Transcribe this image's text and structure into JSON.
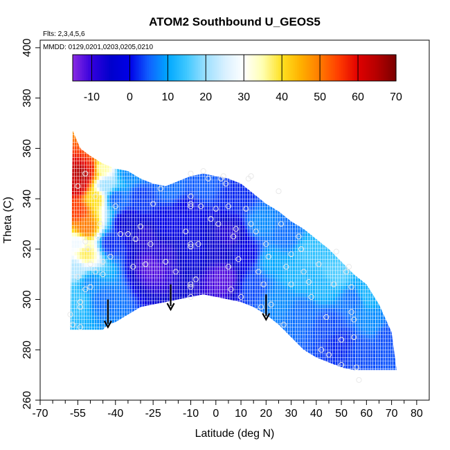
{
  "chart_data": {
    "type": "heatmap",
    "title": "ATOM2 Southbound U_GEOS5",
    "subtitle_lines": [
      "Flts: 2,3,4,5,6",
      "MMDD: 0129,0201,0203,0205,0210"
    ],
    "xlabel": "Latitude (deg N)",
    "ylabel": "Theta (C)",
    "xlim": [
      -70,
      85
    ],
    "ylim": [
      260,
      403
    ],
    "x_ticks": [
      -70,
      -55,
      -40,
      -25,
      -10,
      0,
      10,
      20,
      30,
      40,
      50,
      60,
      70,
      80
    ],
    "x_tick_labels": [
      "-70",
      "-55",
      "-40",
      "-25",
      "-10",
      "0",
      "10",
      "20",
      "30",
      "40",
      "50",
      "60",
      "70",
      "80"
    ],
    "x_minor_ticks": [
      -65,
      -60,
      -50,
      -45,
      -35,
      -30,
      -20,
      -15,
      -5,
      5,
      15,
      25,
      35,
      45,
      55,
      65,
      75
    ],
    "y_ticks": [
      260,
      280,
      300,
      320,
      340,
      360,
      380,
      400
    ],
    "y_tick_labels": [
      "260",
      "280",
      "300",
      "320",
      "340",
      "360",
      "380",
      "400"
    ],
    "colorbar": {
      "min": -15,
      "max": 70,
      "ticks": [
        -10,
        0,
        10,
        20,
        30,
        40,
        50,
        60,
        70
      ],
      "tick_labels": [
        "-10",
        "0",
        "10",
        "20",
        "30",
        "40",
        "50",
        "60",
        "70"
      ],
      "color_stops": [
        {
          "v": -15,
          "c": "#8a2be2"
        },
        {
          "v": -10,
          "c": "#3300dd"
        },
        {
          "v": -5,
          "c": "#0000cc"
        },
        {
          "v": 0,
          "c": "#0000e6"
        },
        {
          "v": 5,
          "c": "#1060ff"
        },
        {
          "v": 10,
          "c": "#00a8ff"
        },
        {
          "v": 15,
          "c": "#40c8ff"
        },
        {
          "v": 20,
          "c": "#9de0ff"
        },
        {
          "v": 25,
          "c": "#d8f0ff"
        },
        {
          "v": 30,
          "c": "#ffffff"
        },
        {
          "v": 35,
          "c": "#ffffb0"
        },
        {
          "v": 40,
          "c": "#ffe020"
        },
        {
          "v": 45,
          "c": "#ffb000"
        },
        {
          "v": 50,
          "c": "#ff7a00"
        },
        {
          "v": 55,
          "c": "#ff3c00"
        },
        {
          "v": 60,
          "c": "#e00000"
        },
        {
          "v": 65,
          "c": "#b40000"
        },
        {
          "v": 70,
          "c": "#7a0000"
        }
      ]
    },
    "field_domain": {
      "top_boundary": [
        [
          -57,
          367
        ],
        [
          -54,
          360
        ],
        [
          -50,
          357
        ],
        [
          -45,
          354
        ],
        [
          -40,
          352
        ],
        [
          -35,
          351
        ],
        [
          -30,
          348
        ],
        [
          -25,
          346
        ],
        [
          -20,
          345
        ],
        [
          -15,
          347
        ],
        [
          -10,
          349
        ],
        [
          -5,
          350
        ],
        [
          0,
          349
        ],
        [
          5,
          348
        ],
        [
          10,
          346
        ],
        [
          15,
          342
        ],
        [
          20,
          338
        ],
        [
          25,
          335
        ],
        [
          30,
          331
        ],
        [
          35,
          328
        ],
        [
          40,
          324
        ],
        [
          45,
          320
        ],
        [
          50,
          315
        ],
        [
          55,
          310
        ],
        [
          60,
          306
        ],
        [
          65,
          298
        ],
        [
          70,
          287
        ],
        [
          72,
          272
        ]
      ],
      "bottom_boundary": [
        [
          -58,
          288
        ],
        [
          -50,
          288
        ],
        [
          -45,
          288
        ],
        [
          -43,
          290
        ],
        [
          -40,
          291
        ],
        [
          -35,
          294
        ],
        [
          -30,
          297
        ],
        [
          -25,
          298
        ],
        [
          -20,
          299
        ],
        [
          -15,
          300
        ],
        [
          -10,
          301
        ],
        [
          -5,
          302
        ],
        [
          0,
          301
        ],
        [
          5,
          300
        ],
        [
          10,
          299
        ],
        [
          15,
          297
        ],
        [
          20,
          294
        ],
        [
          25,
          290
        ],
        [
          30,
          285
        ],
        [
          35,
          280
        ],
        [
          40,
          277
        ],
        [
          45,
          275
        ],
        [
          50,
          273
        ],
        [
          55,
          272
        ],
        [
          60,
          272
        ],
        [
          65,
          272
        ],
        [
          70,
          272
        ],
        [
          72,
          272
        ]
      ]
    },
    "field_samples": [
      {
        "lat": -55,
        "theta": 345,
        "u": 62
      },
      {
        "lat": -53,
        "theta": 350,
        "u": 66
      },
      {
        "lat": -50,
        "theta": 352,
        "u": 58
      },
      {
        "lat": -55,
        "theta": 335,
        "u": 55
      },
      {
        "lat": -52,
        "theta": 328,
        "u": 50
      },
      {
        "lat": -48,
        "theta": 340,
        "u": 40
      },
      {
        "lat": -46,
        "theta": 352,
        "u": 35
      },
      {
        "lat": -44,
        "theta": 345,
        "u": 20
      },
      {
        "lat": -55,
        "theta": 322,
        "u": 28
      },
      {
        "lat": -52,
        "theta": 318,
        "u": 38
      },
      {
        "lat": -56,
        "theta": 312,
        "u": 22
      },
      {
        "lat": -56,
        "theta": 300,
        "u": 14
      },
      {
        "lat": -50,
        "theta": 306,
        "u": 8
      },
      {
        "lat": -45,
        "theta": 300,
        "u": 6
      },
      {
        "lat": -42,
        "theta": 322,
        "u": 2
      },
      {
        "lat": -40,
        "theta": 340,
        "u": 5
      },
      {
        "lat": -35,
        "theta": 350,
        "u": 8
      },
      {
        "lat": -35,
        "theta": 330,
        "u": -4
      },
      {
        "lat": -30,
        "theta": 340,
        "u": 3
      },
      {
        "lat": -28,
        "theta": 325,
        "u": -8
      },
      {
        "lat": -25,
        "theta": 313,
        "u": -12
      },
      {
        "lat": -22,
        "theta": 318,
        "u": -8
      },
      {
        "lat": -20,
        "theta": 330,
        "u": 0
      },
      {
        "lat": -18,
        "theta": 344,
        "u": 6
      },
      {
        "lat": -12,
        "theta": 335,
        "u": 0
      },
      {
        "lat": -8,
        "theta": 320,
        "u": -2
      },
      {
        "lat": -5,
        "theta": 345,
        "u": 5
      },
      {
        "lat": 0,
        "theta": 320,
        "u": -6
      },
      {
        "lat": 3,
        "theta": 308,
        "u": -12
      },
      {
        "lat": 5,
        "theta": 325,
        "u": -8
      },
      {
        "lat": 8,
        "theta": 340,
        "u": 2
      },
      {
        "lat": 12,
        "theta": 318,
        "u": 0
      },
      {
        "lat": 15,
        "theta": 305,
        "u": 4
      },
      {
        "lat": 18,
        "theta": 330,
        "u": 8
      },
      {
        "lat": 22,
        "theta": 315,
        "u": 10
      },
      {
        "lat": 25,
        "theta": 300,
        "u": 8
      },
      {
        "lat": 28,
        "theta": 325,
        "u": 6
      },
      {
        "lat": 32,
        "theta": 310,
        "u": 12
      },
      {
        "lat": 35,
        "theta": 295,
        "u": 6
      },
      {
        "lat": 38,
        "theta": 318,
        "u": 14
      },
      {
        "lat": 42,
        "theta": 305,
        "u": 12
      },
      {
        "lat": 45,
        "theta": 290,
        "u": 4
      },
      {
        "lat": 48,
        "theta": 310,
        "u": 16
      },
      {
        "lat": 50,
        "theta": 282,
        "u": 2
      },
      {
        "lat": 55,
        "theta": 300,
        "u": 6
      },
      {
        "lat": 58,
        "theta": 280,
        "u": 4
      },
      {
        "lat": 62,
        "theta": 290,
        "u": 8
      },
      {
        "lat": 68,
        "theta": 285,
        "u": 4
      },
      {
        "lat": 60,
        "theta": 302,
        "u": 12
      }
    ],
    "observation_points": [
      [
        -55,
        345
      ],
      [
        -52,
        350
      ],
      [
        -48,
        341
      ],
      [
        -46,
        330
      ],
      [
        -47,
        325
      ],
      [
        -52,
        323
      ],
      [
        -51,
        320
      ],
      [
        -50,
        314
      ],
      [
        -48,
        311
      ],
      [
        -50,
        305
      ],
      [
        -52,
        304
      ],
      [
        -55,
        309
      ],
      [
        -58,
        294
      ],
      [
        -57,
        290
      ],
      [
        -54,
        297
      ],
      [
        -54,
        299
      ],
      [
        -54,
        289
      ],
      [
        -45,
        315
      ],
      [
        -45,
        310
      ],
      [
        -42,
        317
      ],
      [
        -40,
        337
      ],
      [
        -38,
        326
      ],
      [
        -35,
        326
      ],
      [
        -33,
        313
      ],
      [
        -32,
        324
      ],
      [
        -30,
        329
      ],
      [
        -28,
        314
      ],
      [
        -25,
        338
      ],
      [
        -26,
        322
      ],
      [
        -22,
        344
      ],
      [
        -20,
        315
      ],
      [
        -16,
        311
      ],
      [
        -12,
        327
      ],
      [
        -10,
        350
      ],
      [
        -10,
        341
      ],
      [
        -10,
        338
      ],
      [
        -10,
        337
      ],
      [
        -10,
        322
      ],
      [
        -10,
        321
      ],
      [
        -10,
        306
      ],
      [
        -10,
        305
      ],
      [
        -10,
        301
      ],
      [
        -8,
        308
      ],
      [
        -7,
        322
      ],
      [
        -6,
        337
      ],
      [
        -5,
        351
      ],
      [
        -3,
        348
      ],
      [
        -2,
        332
      ],
      [
        0,
        336
      ],
      [
        1,
        330
      ],
      [
        2,
        348
      ],
      [
        3,
        349
      ],
      [
        4,
        346
      ],
      [
        5,
        337
      ],
      [
        5,
        313
      ],
      [
        6,
        304
      ],
      [
        7,
        325
      ],
      [
        8,
        328
      ],
      [
        9,
        316
      ],
      [
        10,
        301
      ],
      [
        12,
        336
      ],
      [
        13,
        348
      ],
      [
        14,
        349
      ],
      [
        14,
        330
      ],
      [
        16,
        327
      ],
      [
        17,
        311
      ],
      [
        18,
        297
      ],
      [
        19,
        306
      ],
      [
        20,
        322
      ],
      [
        21,
        317
      ],
      [
        22,
        298
      ],
      [
        25,
        343
      ],
      [
        26,
        330
      ],
      [
        27,
        290
      ],
      [
        28,
        313
      ],
      [
        30,
        318
      ],
      [
        30,
        306
      ],
      [
        33,
        325
      ],
      [
        34,
        320
      ],
      [
        35,
        311
      ],
      [
        37,
        307
      ],
      [
        38,
        301
      ],
      [
        41,
        314
      ],
      [
        42,
        280
      ],
      [
        44,
        293
      ],
      [
        45,
        278
      ],
      [
        47,
        306
      ],
      [
        48,
        319
      ],
      [
        50,
        284
      ],
      [
        50,
        274
      ],
      [
        52,
        311
      ],
      [
        53,
        313
      ],
      [
        54,
        295
      ],
      [
        54,
        305
      ],
      [
        55,
        292
      ],
      [
        55,
        285
      ],
      [
        56,
        273
      ],
      [
        57,
        268
      ]
    ],
    "arrows": [
      {
        "lat": -43,
        "theta_top": 300,
        "theta_tip": 289
      },
      {
        "lat": -18,
        "theta_top": 306,
        "theta_tip": 296
      },
      {
        "lat": 20,
        "theta_top": 302,
        "theta_tip": 292
      }
    ]
  }
}
